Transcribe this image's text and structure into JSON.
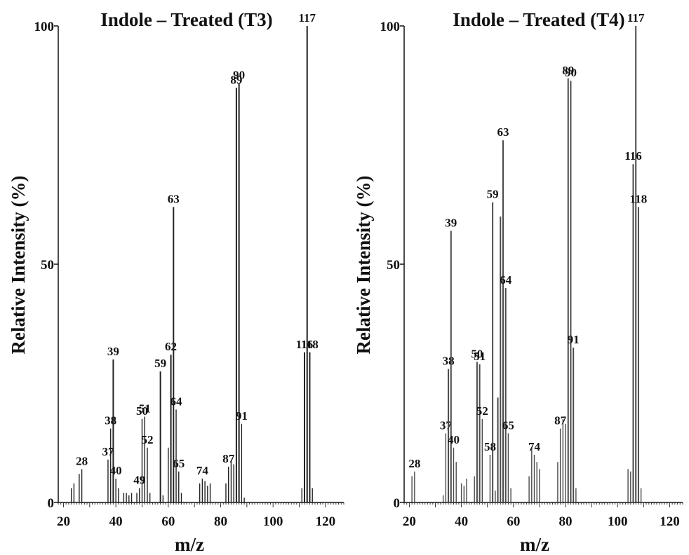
{
  "chart_data": [
    {
      "type": "bar",
      "title": "Indole – Treated (T3)",
      "xlabel": "m/z",
      "ylabel": "Relative Intensity (%)",
      "xlim": [
        18,
        127
      ],
      "ylim": [
        0,
        100
      ],
      "xticks": [
        "20",
        "40",
        "60",
        "80",
        "100",
        "120"
      ],
      "yticks": [
        "0",
        "50",
        "100"
      ],
      "color": "#222222",
      "peaks": [
        {
          "x": 23,
          "y": 3
        },
        {
          "x": 24,
          "y": 4
        },
        {
          "x": 26,
          "y": 6
        },
        {
          "x": 27,
          "y": 7,
          "label": "28"
        },
        {
          "x": 37,
          "y": 9,
          "label": "37"
        },
        {
          "x": 38,
          "y": 15.5,
          "label": "38"
        },
        {
          "x": 39,
          "y": 30,
          "label": "39"
        },
        {
          "x": 40,
          "y": 5,
          "label": "40"
        },
        {
          "x": 41,
          "y": 3
        },
        {
          "x": 43,
          "y": 2
        },
        {
          "x": 44,
          "y": 2
        },
        {
          "x": 45,
          "y": 1.5
        },
        {
          "x": 46,
          "y": 2
        },
        {
          "x": 48,
          "y": 2
        },
        {
          "x": 49,
          "y": 3,
          "label": "49"
        },
        {
          "x": 50,
          "y": 17.5,
          "label": "50"
        },
        {
          "x": 51,
          "y": 18,
          "label": "51"
        },
        {
          "x": 52,
          "y": 11.5,
          "label": "52"
        },
        {
          "x": 53,
          "y": 2
        },
        {
          "x": 57,
          "y": 27.5,
          "label": "59"
        },
        {
          "x": 58,
          "y": 1.5
        },
        {
          "x": 60,
          "y": 11.5
        },
        {
          "x": 61,
          "y": 31,
          "label": "62"
        },
        {
          "x": 62,
          "y": 62,
          "label": "63"
        },
        {
          "x": 63,
          "y": 19.5,
          "label": "64"
        },
        {
          "x": 64,
          "y": 6.5,
          "label": "65"
        },
        {
          "x": 65,
          "y": 2
        },
        {
          "x": 72,
          "y": 4
        },
        {
          "x": 73,
          "y": 5,
          "label": "74"
        },
        {
          "x": 74,
          "y": 4.5
        },
        {
          "x": 75,
          "y": 3.5
        },
        {
          "x": 76,
          "y": 4
        },
        {
          "x": 82,
          "y": 4
        },
        {
          "x": 83,
          "y": 7.5,
          "label": "87"
        },
        {
          "x": 84,
          "y": 8.5
        },
        {
          "x": 85,
          "y": 8
        },
        {
          "x": 86,
          "y": 87,
          "label": "89"
        },
        {
          "x": 87,
          "y": 88,
          "label": "90"
        },
        {
          "x": 88,
          "y": 16.5,
          "label": "91"
        },
        {
          "x": 89,
          "y": 1
        },
        {
          "x": 111,
          "y": 3
        },
        {
          "x": 112,
          "y": 31.5,
          "label": "116"
        },
        {
          "x": 113,
          "y": 100,
          "label": "117"
        },
        {
          "x": 114,
          "y": 31.5,
          "label": "118"
        },
        {
          "x": 115,
          "y": 3
        }
      ]
    },
    {
      "type": "bar",
      "title": "Indole – Treated (T4)",
      "xlabel": "m/z",
      "ylabel": "Relative Intensity (%)",
      "xlim": [
        18,
        125
      ],
      "ylim": [
        0,
        100
      ],
      "xticks": [
        "20",
        "40",
        "60",
        "80",
        "100",
        "120"
      ],
      "yticks": [
        "0",
        "50",
        "100"
      ],
      "color": "#4a4a4a",
      "peaks": [
        {
          "x": 21,
          "y": 5.5
        },
        {
          "x": 22,
          "y": 6.5,
          "label": "28"
        },
        {
          "x": 33,
          "y": 1.5
        },
        {
          "x": 34,
          "y": 14.5,
          "label": "37"
        },
        {
          "x": 35,
          "y": 28,
          "label": "38"
        },
        {
          "x": 36,
          "y": 57,
          "label": "39"
        },
        {
          "x": 37,
          "y": 11.5,
          "label": "40"
        },
        {
          "x": 38,
          "y": 8.5
        },
        {
          "x": 40,
          "y": 4
        },
        {
          "x": 41,
          "y": 3.5
        },
        {
          "x": 42,
          "y": 5
        },
        {
          "x": 45,
          "y": 5.5
        },
        {
          "x": 46,
          "y": 29.5,
          "label": "50"
        },
        {
          "x": 47,
          "y": 29,
          "label": "51"
        },
        {
          "x": 48,
          "y": 17.5,
          "label": "52"
        },
        {
          "x": 51,
          "y": 10,
          "label": "58"
        },
        {
          "x": 52,
          "y": 63,
          "label": "59"
        },
        {
          "x": 53,
          "y": 2.5
        },
        {
          "x": 54,
          "y": 22
        },
        {
          "x": 55,
          "y": 60
        },
        {
          "x": 56,
          "y": 76,
          "label": "63"
        },
        {
          "x": 57,
          "y": 45,
          "label": "64"
        },
        {
          "x": 58,
          "y": 14.5,
          "label": "65"
        },
        {
          "x": 59,
          "y": 3
        },
        {
          "x": 66,
          "y": 5.5
        },
        {
          "x": 67,
          "y": 11.5
        },
        {
          "x": 68,
          "y": 10,
          "label": "74"
        },
        {
          "x": 69,
          "y": 8.5
        },
        {
          "x": 70,
          "y": 7
        },
        {
          "x": 77,
          "y": 8.5
        },
        {
          "x": 78,
          "y": 15.5,
          "label": "87"
        },
        {
          "x": 79,
          "y": 17.5
        },
        {
          "x": 80,
          "y": 16.5
        },
        {
          "x": 81,
          "y": 89,
          "label": "89"
        },
        {
          "x": 82,
          "y": 88.5,
          "label": "90"
        },
        {
          "x": 83,
          "y": 32.5,
          "label": "91"
        },
        {
          "x": 84,
          "y": 3
        },
        {
          "x": 104,
          "y": 7
        },
        {
          "x": 105,
          "y": 6.5
        },
        {
          "x": 106,
          "y": 71,
          "label": "116"
        },
        {
          "x": 107,
          "y": 100,
          "label": "117"
        },
        {
          "x": 108,
          "y": 62,
          "label": "118"
        },
        {
          "x": 109,
          "y": 3
        }
      ]
    }
  ]
}
